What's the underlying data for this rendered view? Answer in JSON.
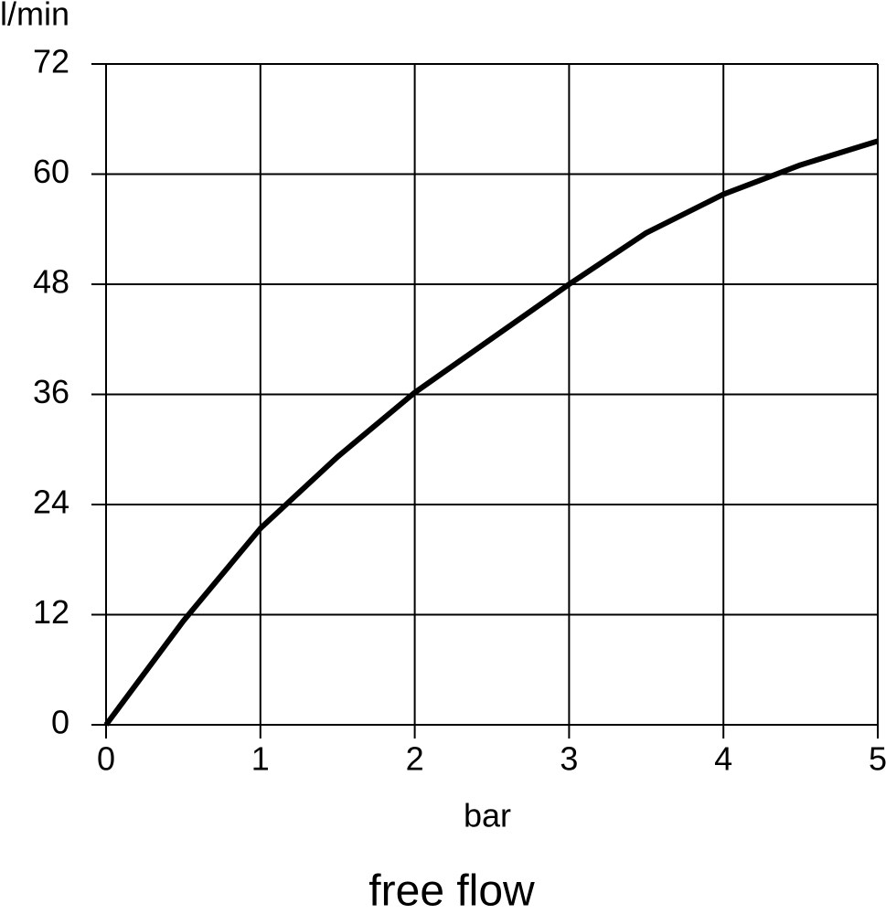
{
  "chart_data": {
    "type": "line",
    "title": "free flow",
    "x_label": "bar",
    "y_label": "l/min",
    "x": [
      0,
      0.5,
      1,
      1.5,
      2,
      2.5,
      3,
      3.5,
      4,
      4.5,
      5
    ],
    "values": [
      0,
      11.3,
      21.4,
      29.2,
      36.2,
      42.1,
      48,
      53.6,
      57.8,
      61,
      63.6
    ],
    "color": "#000000",
    "xlim": [
      0,
      5
    ],
    "xticks": [
      0,
      1,
      2,
      3,
      4,
      5
    ],
    "ylim": [
      0,
      72
    ],
    "yticks": [
      0,
      12,
      24,
      36,
      48,
      60,
      72
    ],
    "grid": true
  }
}
